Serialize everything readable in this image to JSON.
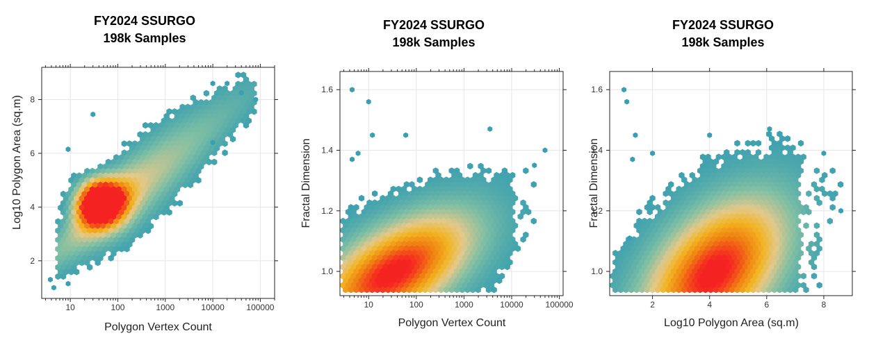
{
  "chart_data": [
    {
      "type": "heatmap",
      "title": "FY2024 SSURGO",
      "subtitle": "198k Samples",
      "xlabel": "Polygon Vertex Count",
      "ylabel": "Log10 Polygon Area (sq.m)",
      "x_scale": "log10",
      "xlim": [
        2.5,
        200000
      ],
      "ylim": [
        0.6,
        9.2
      ],
      "x_ticks": [
        10,
        100,
        1000,
        10000,
        100000
      ],
      "x_tick_labels": [
        "10",
        "100",
        "1000",
        "10000",
        "100000"
      ],
      "y_ticks": [
        2,
        4,
        6,
        8
      ],
      "y_tick_labels": [
        "2",
        "4",
        "6",
        "8"
      ],
      "grid": true,
      "density_core": {
        "x": 35,
        "y": 4.4
      },
      "trend": {
        "x_log10_range": [
          0.6,
          4.9
        ],
        "y_at_start": 2.5,
        "slope_per_decade": 1.55
      },
      "outliers": [
        {
          "x": 4.5,
          "y": 1.0
        },
        {
          "x": 3.8,
          "y": 1.3
        },
        {
          "x": 9,
          "y": 1.15
        },
        {
          "x": 9,
          "y": 6.15
        },
        {
          "x": 30,
          "y": 7.45
        },
        {
          "x": 10000,
          "y": 8.6
        },
        {
          "x": 20000,
          "y": 8.6
        },
        {
          "x": 40000,
          "y": 8.25
        },
        {
          "x": 80000,
          "y": 8.0
        },
        {
          "x": 10000,
          "y": 6.4
        }
      ]
    },
    {
      "type": "heatmap",
      "title": "FY2024 SSURGO",
      "subtitle": "198k Samples",
      "xlabel": "Polygon Vertex Count",
      "ylabel": "Fractal Dimension",
      "x_scale": "log10",
      "xlim": [
        2.5,
        120000
      ],
      "ylim": [
        0.92,
        1.66
      ],
      "x_ticks": [
        10,
        100,
        1000,
        10000,
        100000
      ],
      "x_tick_labels": [
        "10",
        "100",
        "1000",
        "10000",
        "100000"
      ],
      "y_ticks": [
        1.0,
        1.2,
        1.4,
        1.6
      ],
      "y_tick_labels": [
        "1.0",
        "1.2",
        "1.4",
        "1.6"
      ],
      "grid": true,
      "density_core": {
        "x": 30,
        "y": 1.03
      },
      "outliers": [
        {
          "x": 4.5,
          "y": 1.6
        },
        {
          "x": 10,
          "y": 1.56
        },
        {
          "x": 12,
          "y": 1.45
        },
        {
          "x": 60,
          "y": 1.45
        },
        {
          "x": 4.5,
          "y": 1.37
        },
        {
          "x": 6,
          "y": 1.39
        },
        {
          "x": 3500,
          "y": 1.47
        },
        {
          "x": 50000,
          "y": 1.4
        },
        {
          "x": 30000,
          "y": 1.35
        }
      ]
    },
    {
      "type": "heatmap",
      "title": "FY2024 SSURGO",
      "subtitle": "198k Samples",
      "xlabel": "Log10 Polygon Area (sq.m)",
      "ylabel": "Fractal Dimension",
      "xlim": [
        0.5,
        9.0
      ],
      "ylim": [
        0.92,
        1.66
      ],
      "x_ticks": [
        2,
        4,
        6,
        8
      ],
      "x_tick_labels": [
        "2",
        "4",
        "6",
        "8"
      ],
      "y_ticks": [
        1.0,
        1.2,
        1.4,
        1.6
      ],
      "y_tick_labels": [
        "1.0",
        "1.2",
        "1.4",
        "1.6"
      ],
      "grid": true,
      "density_core": {
        "x": 4.6,
        "y": 1.05
      },
      "outliers": [
        {
          "x": 1.0,
          "y": 1.6
        },
        {
          "x": 1.1,
          "y": 1.56
        },
        {
          "x": 1.4,
          "y": 1.45
        },
        {
          "x": 1.3,
          "y": 1.37
        },
        {
          "x": 2.0,
          "y": 1.39
        },
        {
          "x": 1.2,
          "y": 1.11
        },
        {
          "x": 4.0,
          "y": 1.45
        },
        {
          "x": 6.1,
          "y": 1.47
        },
        {
          "x": 8.0,
          "y": 1.39
        },
        {
          "x": 8.6,
          "y": 1.2
        }
      ]
    }
  ],
  "colors": {
    "low": "#3a9fb0",
    "mid_low": "#7fbfa4",
    "mid": "#e3c98a",
    "mid_high": "#f2b422",
    "high": "#f07f12",
    "peak": "#f52222",
    "grid": "#e6e6e6"
  }
}
